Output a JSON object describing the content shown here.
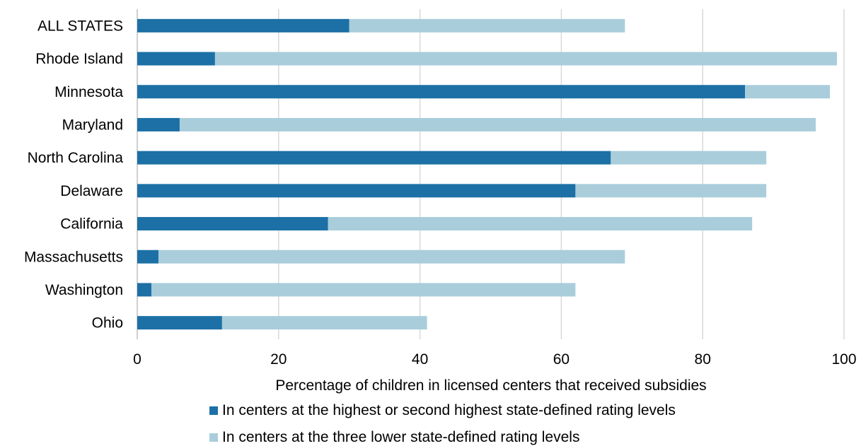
{
  "chart_data": {
    "type": "bar",
    "orientation": "horizontal",
    "stacked": true,
    "categories": [
      "ALL STATES",
      "Rhode Island",
      "Minnesota",
      "Maryland",
      "North Carolina",
      "Delaware",
      "California",
      "Massachusetts",
      "Washington",
      "Ohio"
    ],
    "series": [
      {
        "name": "In centers at the highest or second highest state-defined rating levels",
        "color": "#1c70a5",
        "values": [
          30,
          11,
          86,
          6,
          67,
          62,
          27,
          3,
          2,
          12
        ]
      },
      {
        "name": "In centers at the three lower state-defined rating levels",
        "color": "#a9cddb",
        "values": [
          39,
          88,
          12,
          90,
          22,
          27,
          60,
          66,
          60,
          29
        ]
      }
    ],
    "xlabel": "Percentage of children in licensed centers that received subsidies",
    "xlim": [
      0,
      100
    ],
    "xticks": [
      "0",
      "20",
      "40",
      "60",
      "80",
      "100"
    ],
    "grid": "vertical",
    "legend_position": "bottom"
  }
}
